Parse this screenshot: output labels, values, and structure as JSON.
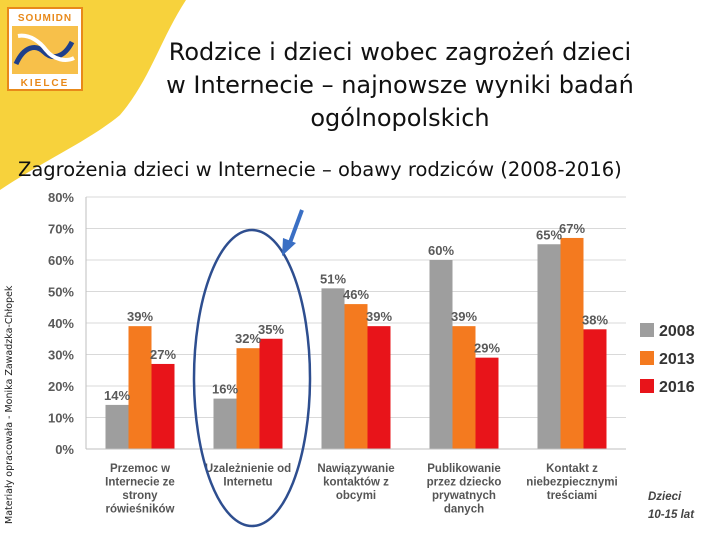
{
  "header": {
    "logo_top": "SOUMIDN",
    "logo_bottom": "KIELCE",
    "title_line1": "Rodzice i dzieci wobec zagrożeń dzieci",
    "title_line2": "w Internecie – najnowsze wyniki badań",
    "title_line3": "ogólnopolskich",
    "subtitle": "Zagrożenia dzieci w Internecie – obawy rodziców (2008-2016)",
    "side_note": "Materiały opracowała - Monika Zawadzka-Chłopek"
  },
  "colors": {
    "accent_yellow": "#f7d23c",
    "logo_orange": "#e8891a",
    "series_2008": "#9e9e9e",
    "series_2013": "#f47a1f",
    "series_2016": "#e8141a",
    "highlight": "#2e4e8f"
  },
  "chart_data": {
    "type": "bar",
    "categories": [
      [
        "Przemoc w",
        "Internecie ze",
        "strony",
        "rówieśników"
      ],
      [
        "Uzależnienie od",
        "Internetu"
      ],
      [
        "Nawiązywanie",
        "kontaktów z",
        "obcymi"
      ],
      [
        "Publikowanie",
        "przez dziecko",
        "prywatnych",
        "danych"
      ],
      [
        "Kontakt z",
        "niebezpiecznymi",
        "treściami"
      ]
    ],
    "series": [
      {
        "name": "2008",
        "values": [
          14,
          16,
          51,
          60,
          65
        ],
        "labels": [
          "14%",
          "16%",
          "51%",
          "60%",
          "65%"
        ]
      },
      {
        "name": "2013",
        "values": [
          39,
          32,
          46,
          39,
          67
        ],
        "labels": [
          "39%",
          "32%",
          "46%",
          "39%",
          "67%"
        ]
      },
      {
        "name": "2016",
        "values": [
          27,
          35,
          39,
          29,
          38
        ],
        "labels": [
          "27%",
          "35%",
          "39%",
          "29%",
          "38%"
        ]
      }
    ],
    "yticks": [
      "0%",
      "10%",
      "20%",
      "30%",
      "40%",
      "50%",
      "60%",
      "70%",
      "80%"
    ],
    "ylim": [
      0,
      80
    ],
    "legend_position": "right",
    "annotation": [
      "Dzieci",
      "10-15 lat"
    ],
    "highlighted_category": 1
  }
}
